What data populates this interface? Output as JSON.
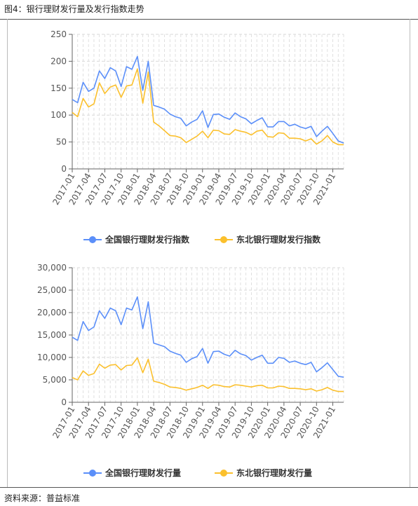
{
  "figure_title": "图4：银行理财发行量及发行指数走势",
  "source": "资料来源：普益标准",
  "colors": {
    "blue": "#5b8ff9",
    "yellow": "#fbc02d",
    "grid": "#d9d9d9",
    "axis": "#666666"
  },
  "x_tick_labels": [
    "2017-01",
    "2017-04",
    "2017-07",
    "2017-10",
    "2018-01",
    "2018-04",
    "2018-07",
    "2018-10",
    "2019-01",
    "2019-04",
    "2019-07",
    "2019-10",
    "2020-01",
    "2020-04",
    "2020-07",
    "2020-10",
    "2021-01"
  ],
  "chart_data": [
    {
      "type": "line",
      "title": "",
      "xlabel": "",
      "ylabel": "",
      "ylim": [
        0,
        250
      ],
      "y_ticks": [
        "0",
        "50",
        "100",
        "150",
        "200",
        "250"
      ],
      "grid": true,
      "legend_placement": "bottom-center",
      "x": [
        "2017-01",
        "2017-02",
        "2017-03",
        "2017-04",
        "2017-05",
        "2017-06",
        "2017-07",
        "2017-08",
        "2017-09",
        "2017-10",
        "2017-11",
        "2017-12",
        "2018-01",
        "2018-02",
        "2018-03",
        "2018-04",
        "2018-05",
        "2018-06",
        "2018-07",
        "2018-08",
        "2018-09",
        "2018-10",
        "2018-11",
        "2018-12",
        "2019-01",
        "2019-02",
        "2019-03",
        "2019-04",
        "2019-05",
        "2019-06",
        "2019-07",
        "2019-08",
        "2019-09",
        "2019-10",
        "2019-11",
        "2019-12",
        "2020-01",
        "2020-02",
        "2020-03",
        "2020-04",
        "2020-05",
        "2020-06",
        "2020-07",
        "2020-08",
        "2020-09",
        "2020-10",
        "2020-11",
        "2020-12",
        "2021-01",
        "2021-02",
        "2021-03"
      ],
      "series": [
        {
          "name": "全国银行理财发行指数",
          "color": "#5b8ff9",
          "values": [
            129,
            123,
            161,
            144,
            150,
            182,
            168,
            188,
            182,
            153,
            190,
            185,
            209,
            146,
            200,
            118,
            115,
            111,
            102,
            97,
            94,
            80,
            87,
            92,
            108,
            77,
            101,
            102,
            96,
            92,
            104,
            97,
            93,
            84,
            90,
            95,
            78,
            78,
            88,
            88,
            80,
            83,
            78,
            75,
            79,
            60,
            70,
            79,
            66,
            52,
            48
          ]
        },
        {
          "name": "东北银行理财发行指数",
          "color": "#fbc02d",
          "values": [
            105,
            97,
            131,
            115,
            121,
            160,
            140,
            152,
            156,
            133,
            154,
            156,
            186,
            122,
            180,
            87,
            80,
            71,
            62,
            61,
            58,
            49,
            55,
            61,
            70,
            58,
            72,
            71,
            65,
            64,
            73,
            70,
            68,
            63,
            70,
            72,
            60,
            59,
            67,
            66,
            57,
            57,
            56,
            52,
            56,
            46,
            52,
            62,
            50,
            45,
            45
          ]
        }
      ]
    },
    {
      "type": "line",
      "title": "",
      "xlabel": "",
      "ylabel": "",
      "ylim": [
        0,
        30000
      ],
      "y_ticks": [
        "0",
        "5,000",
        "10,000",
        "15,000",
        "20,000",
        "25,000",
        "30,000"
      ],
      "grid": true,
      "legend_placement": "bottom-center",
      "x": [
        "2017-01",
        "2017-02",
        "2017-03",
        "2017-04",
        "2017-05",
        "2017-06",
        "2017-07",
        "2017-08",
        "2017-09",
        "2017-10",
        "2017-11",
        "2017-12",
        "2018-01",
        "2018-02",
        "2018-03",
        "2018-04",
        "2018-05",
        "2018-06",
        "2018-07",
        "2018-08",
        "2018-09",
        "2018-10",
        "2018-11",
        "2018-12",
        "2019-01",
        "2019-02",
        "2019-03",
        "2019-04",
        "2019-05",
        "2019-06",
        "2019-07",
        "2019-08",
        "2019-09",
        "2019-10",
        "2019-11",
        "2019-12",
        "2020-01",
        "2020-02",
        "2020-03",
        "2020-04",
        "2020-05",
        "2020-06",
        "2020-07",
        "2020-08",
        "2020-09",
        "2020-10",
        "2020-11",
        "2020-12",
        "2021-01",
        "2021-02",
        "2021-03"
      ],
      "series": [
        {
          "name": "全国银行理财发行量",
          "color": "#5b8ff9",
          "values": [
            14500,
            13800,
            18000,
            16000,
            16800,
            20400,
            18700,
            21000,
            20400,
            17300,
            21000,
            20600,
            23500,
            16400,
            22400,
            13200,
            12800,
            12400,
            11400,
            10900,
            10500,
            8900,
            9700,
            10200,
            12000,
            8700,
            11300,
            11400,
            10700,
            10300,
            11600,
            10800,
            10400,
            9400,
            10000,
            10500,
            8700,
            8700,
            10000,
            9800,
            8900,
            9200,
            8700,
            8400,
            8900,
            6800,
            7700,
            8800,
            7300,
            5800,
            5600
          ]
        },
        {
          "name": "东北银行理财发行量",
          "color": "#fbc02d",
          "values": [
            5500,
            5000,
            7000,
            6000,
            6400,
            8500,
            7600,
            8300,
            8400,
            7200,
            8200,
            8300,
            9900,
            6600,
            9600,
            4700,
            4400,
            4000,
            3400,
            3300,
            3100,
            2700,
            3000,
            3300,
            3800,
            3100,
            3900,
            3800,
            3500,
            3400,
            3900,
            3800,
            3600,
            3400,
            3700,
            3800,
            3200,
            3200,
            3600,
            3500,
            3100,
            3100,
            3000,
            2800,
            3000,
            2500,
            2800,
            3300,
            2700,
            2400,
            2400
          ]
        }
      ]
    }
  ]
}
